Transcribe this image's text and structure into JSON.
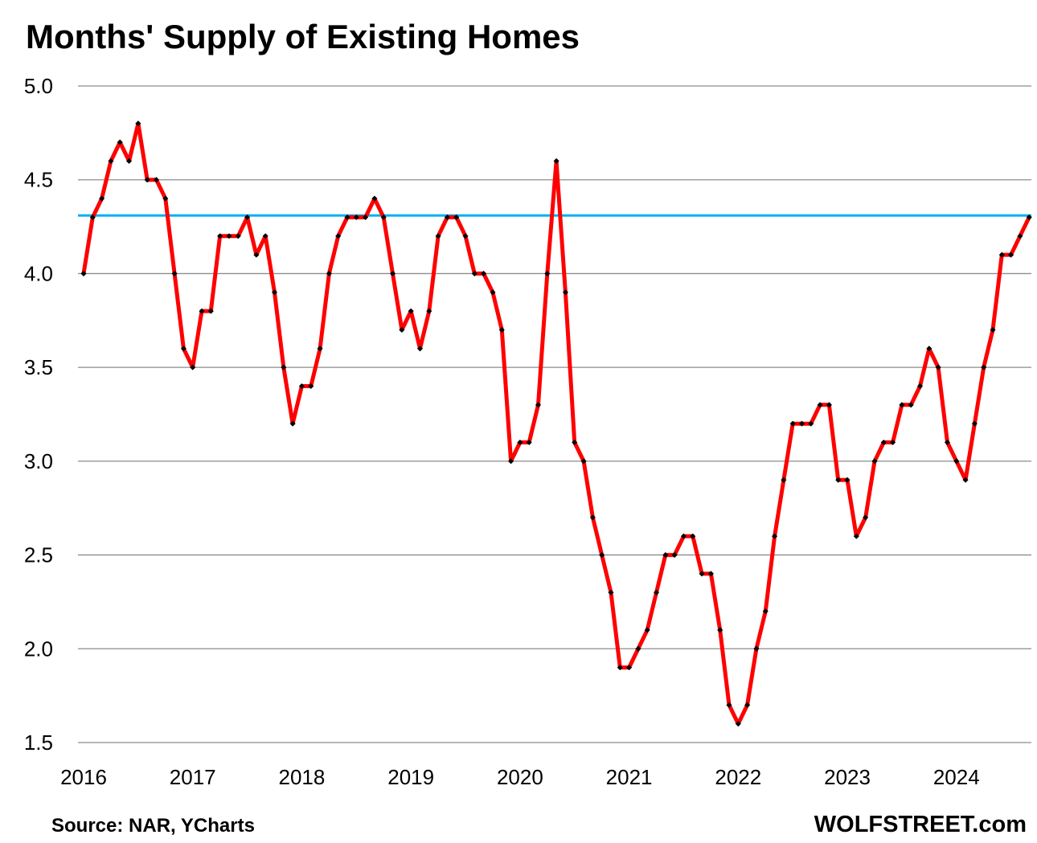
{
  "chart_data": {
    "type": "line",
    "title": "Months' Supply of Existing Homes",
    "xlabel": "",
    "ylabel": "",
    "ylim": [
      1.5,
      5.0
    ],
    "yticks": [
      "1.5",
      "2.0",
      "2.5",
      "3.0",
      "3.5",
      "4.0",
      "4.5",
      "5.0"
    ],
    "xticks": [
      "2016",
      "2017",
      "2018",
      "2019",
      "2020",
      "2021",
      "2022",
      "2023",
      "2024"
    ],
    "x_start": "2016-01",
    "grid": true,
    "series": [
      {
        "name": "Months' supply",
        "color": "#ff0000",
        "marker_color": "#000000",
        "values": [
          4.0,
          4.3,
          4.4,
          4.6,
          4.7,
          4.6,
          4.8,
          4.5,
          4.5,
          4.4,
          4.0,
          3.6,
          3.5,
          3.8,
          3.8,
          4.2,
          4.2,
          4.2,
          4.3,
          4.1,
          4.2,
          3.9,
          3.5,
          3.2,
          3.4,
          3.4,
          3.6,
          4.0,
          4.2,
          4.3,
          4.3,
          4.3,
          4.4,
          4.3,
          4.0,
          3.7,
          3.8,
          3.6,
          3.8,
          4.2,
          4.3,
          4.3,
          4.2,
          4.0,
          4.0,
          3.9,
          3.7,
          3.0,
          3.1,
          3.1,
          3.3,
          4.0,
          4.6,
          3.9,
          3.1,
          3.0,
          2.7,
          2.5,
          2.3,
          1.9,
          1.9,
          2.0,
          2.1,
          2.3,
          2.5,
          2.5,
          2.6,
          2.6,
          2.4,
          2.4,
          2.1,
          1.7,
          1.6,
          1.7,
          2.0,
          2.2,
          2.6,
          2.9,
          3.2,
          3.2,
          3.2,
          3.3,
          3.3,
          2.9,
          2.9,
          2.6,
          2.7,
          3.0,
          3.1,
          3.1,
          3.3,
          3.3,
          3.4,
          3.6,
          3.5,
          3.1,
          3.0,
          2.9,
          3.2,
          3.5,
          3.7,
          4.1,
          4.1,
          4.2,
          4.3
        ]
      }
    ],
    "reference_line": {
      "value": 4.31,
      "color": "#00b0f0"
    }
  },
  "footer": {
    "source": "Source: NAR, YCharts",
    "brand": "WOLFSTREET.com"
  }
}
